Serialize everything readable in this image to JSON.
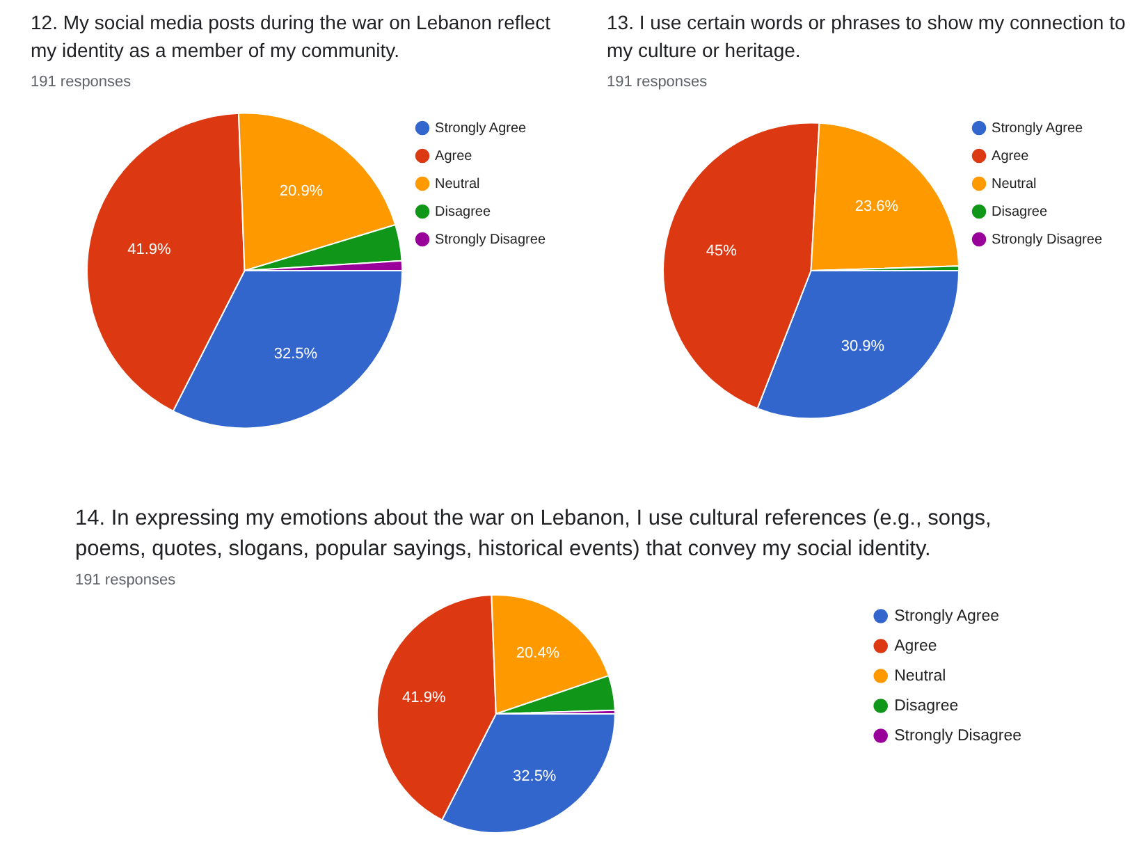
{
  "chart_data": [
    {
      "type": "pie",
      "title": "12. My social media posts during the war on Lebanon reflect my identity as a member of my community.",
      "subtitle": "191 responses",
      "categories": [
        "Strongly Agree",
        "Agree",
        "Neutral",
        "Disagree",
        "Strongly Disagree"
      ],
      "values": [
        32.5,
        41.9,
        20.9,
        3.7,
        1.0
      ],
      "colors": [
        "#3366cc",
        "#dc3912",
        "#ff9900",
        "#109618",
        "#990099"
      ],
      "value_labels": [
        "32.5%",
        "41.9%",
        "20.9%",
        null,
        null
      ],
      "legend": "right"
    },
    {
      "type": "pie",
      "title": "13.  I use certain words or phrases to show my connection to my culture or heritage.",
      "subtitle": "191 responses",
      "categories": [
        "Strongly Agree",
        "Agree",
        "Neutral",
        "Disagree",
        "Strongly Disagree"
      ],
      "values": [
        30.9,
        45,
        23.6,
        0.5,
        0
      ],
      "colors": [
        "#3366cc",
        "#dc3912",
        "#ff9900",
        "#109618",
        "#990099"
      ],
      "value_labels": [
        "30.9%",
        "45%",
        "23.6%",
        null,
        null
      ],
      "legend": "right"
    },
    {
      "type": "pie",
      "title": "14.   In expressing  my emotions about the war on Lebanon,  I use cultural references (e.g., songs, poems, quotes, slogans, popular sayings, historical events) that convey my social identity.",
      "subtitle": "191 responses",
      "categories": [
        "Strongly Agree",
        "Agree",
        "Neutral",
        "Disagree",
        "Strongly Disagree"
      ],
      "values": [
        32.5,
        41.9,
        20.4,
        4.7,
        0.5
      ],
      "colors": [
        "#3366cc",
        "#dc3912",
        "#ff9900",
        "#109618",
        "#990099"
      ],
      "value_labels": [
        "32.5%",
        "41.9%",
        "20.4%",
        null,
        null
      ],
      "legend": "right"
    }
  ]
}
